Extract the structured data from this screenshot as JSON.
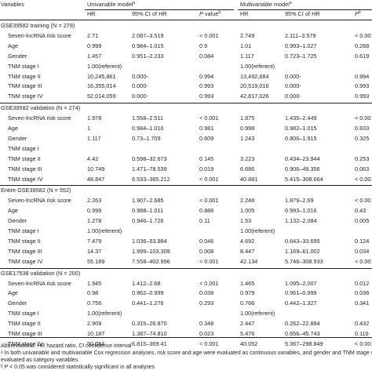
{
  "header": {
    "variables": "Variables",
    "univariable": "Univariable model",
    "univariable_sup": "a",
    "multivariable": "Multivariable model",
    "multivariable_sup": "a",
    "hr": "HR",
    "ci": "95% CI of HR",
    "p": "P",
    "p_rest": " value",
    "p_sup": "b"
  },
  "sections": [
    {
      "title": "GSE39582 training (N = 278)",
      "rows": [
        {
          "name": "Seven-lncRNA risk score",
          "hr1": "2.71",
          "ci1": "2.087–3.519",
          "p1": "< 0.001",
          "hr2": "2.749",
          "ci2": "2.111–3.579",
          "p2": "< 0.001"
        },
        {
          "name": "Age",
          "hr1": "0.999",
          "ci1": "0.984–1.015",
          "p1": "0.9",
          "hr2": "1.01",
          "ci2": "0.993–1.027",
          "p2": "0.268"
        },
        {
          "name": "Gender",
          "hr1": "1.457",
          "ci1": "0.951–2.233",
          "p1": "0.084",
          "hr2": "1.117",
          "ci2": "0.723–1.725",
          "p2": "0.619"
        },
        {
          "name": "TNM stage I",
          "hr1": "1.00(referent)",
          "ci1": "",
          "p1": "",
          "hr2": "1.00(referent)",
          "ci2": "",
          "p2": ""
        },
        {
          "name": "TNM stage II",
          "hr1": "10,245,861",
          "ci1": "0.000-",
          "p1": "0.994",
          "hr2": "13,492,684",
          "ci2": "0.000-",
          "p2": "0.994"
        },
        {
          "name": "TNM stage III",
          "hr1": "16,355,014",
          "ci1": "0.000-",
          "p1": "0.993",
          "hr2": "20,519,016",
          "ci2": "0.000-",
          "p2": "0.993"
        },
        {
          "name": "TNM stage IV",
          "hr1": "52,014,059",
          "ci1": "0.000-",
          "p1": "0.993",
          "hr2": "42,817,026",
          "ci2": "0.000-",
          "p2": "0.993"
        }
      ]
    },
    {
      "title": "GSE39582 validation (N = 274)",
      "rows": [
        {
          "name": "Seven-lncRNA risk score",
          "hr1": "1.978",
          "ci1": "1.558–2.511",
          "p1": "< 0.001",
          "hr2": "1.875",
          "ci2": "1.435–2.449",
          "p2": "< 0.001"
        },
        {
          "name": "Age",
          "hr1": "1",
          "ci1": "0.984–1.016",
          "p1": "0.981",
          "hr2": "0.998",
          "ci2": "0.982–1.015",
          "p2": "0.833"
        },
        {
          "name": "Gender",
          "hr1": "1.117",
          "ci1": "0.73–1.709",
          "p1": "0.609",
          "hr2": "1.243",
          "ci2": "0.806–1.915",
          "p2": "0.325"
        },
        {
          "name": "TNM stage I",
          "hr1": "",
          "ci1": "",
          "p1": "",
          "hr2": "",
          "ci2": "",
          "p2": ""
        },
        {
          "name": "TNM stage II",
          "hr1": "4.42",
          "ci1": "0.598–32.673",
          "p1": "0.145",
          "hr2": "3.223",
          "ci2": "0.434–23.944",
          "p2": "0.253"
        },
        {
          "name": "TNM stage III",
          "hr1": "10.749",
          "ci1": "1.471–78.539",
          "p1": "0.019",
          "hr2": "6.686",
          "ci2": "0.906–49.356",
          "p2": "0.063"
        },
        {
          "name": "TNM stage IV",
          "hr1": "48.847",
          "ci1": "6.533–365.212",
          "p1": "< 0.001",
          "hr2": "40.881",
          "ci2": "5.415–308.664",
          "p2": "< 0.001"
        }
      ]
    },
    {
      "title": "Entire GSE39582 (N = 552)",
      "rows": [
        {
          "name": "Seven-lncRNA risk score",
          "hr1": "2.263",
          "ci1": "1.907–2.685",
          "p1": "< 0.001",
          "hr2": "2.248",
          "ci2": "1.879–2.69",
          "p2": "< 0.001"
        },
        {
          "name": "Age",
          "hr1": "0.999",
          "ci1": "0.988–1.011",
          "p1": "0.886",
          "hr2": "1.005",
          "ci2": "0.993–1.016",
          "p2": "0.43"
        },
        {
          "name": "Gender",
          "hr1": "1.278",
          "ci1": "0.946–1.726",
          "p1": "0.11",
          "hr2": "1.53",
          "ci2": "1.132–2.084",
          "p2": "0.005"
        },
        {
          "name": "TNM stage I",
          "hr1": "1.00(referent)",
          "ci1": "",
          "p1": "",
          "hr2": "1.00(referent)",
          "ci2": "",
          "p2": ""
        },
        {
          "name": "TNM stage II",
          "hr1": "7.479",
          "ci1": "1.036–53.984",
          "p1": "0.046",
          "hr2": "4.692",
          "ci2": "0.643–33.695",
          "p2": "0.124"
        },
        {
          "name": "TNM stage III",
          "hr1": "14.37",
          "ci1": "1.999–103.309",
          "p1": "0.008",
          "hr2": "8.447",
          "ci2": "1.169–61.002",
          "p2": "0.034"
        },
        {
          "name": "TNM stage IV",
          "hr1": "55.189",
          "ci1": "7.558–402.996",
          "p1": "< 0.001",
          "hr2": "42.134",
          "ci2": "5.746–308.933",
          "p2": "< 0.001"
        }
      ]
    },
    {
      "title": "GSE17538 validation (N = 200)",
      "rows": [
        {
          "name": "Seven-lncRNA risk score",
          "hr1": "1.945",
          "ci1": "1.412–2.68",
          "p1": "< 0.001",
          "hr2": "1.465",
          "ci2": "1.095–2.007",
          "p2": "0.012"
        },
        {
          "name": "Age",
          "hr1": "0.98",
          "ci1": "0.962–0.999",
          "p1": "0.038",
          "hr2": "0.979",
          "ci2": "0.961–0.999",
          "p2": "0.036"
        },
        {
          "name": "Gender",
          "hr1": "0.756",
          "ci1": "0.441–1.276",
          "p1": "0.293",
          "hr2": "0.766",
          "ci2": "0.442–1.327",
          "p2": "0.341"
        },
        {
          "name": "TNM stage I",
          "hr1": "1.00(referent)",
          "ci1": "",
          "p1": "",
          "hr2": "1.00(referent)",
          "ci2": "",
          "p2": ""
        },
        {
          "name": "TNM stage II",
          "hr1": "2.909",
          "ci1": "0.315–26.870",
          "p1": "0.348",
          "hr2": "2.447",
          "ci2": "0.262–22.884",
          "p2": "0.432"
        },
        {
          "name": "TNM stage III",
          "hr1": "10.187",
          "ci1": "1.387–74.810",
          "p1": "0.023",
          "hr2": "5.476",
          "ci2": "0.656–45.743",
          "p2": "0.116"
        },
        {
          "name": "TNM stage IV",
          "hr1": "50.054",
          "ci1": "6.815–369.41",
          "p1": "< 0.001",
          "hr2": "40.052",
          "ci2": "5.367–298.849",
          "p2": "< 0.001"
        }
      ]
    }
  ],
  "footnotes": [
    "Abbreviations: HR hazard ratio, CI confidence interval",
    "ᵃ In both univariable and multivariable Cox regression analyses, risk score and age were evaluated as continuous variables, and gender and TNM stage were",
    "evaluated as category variables",
    "ᵇ P < 0.05 was considered statistically significant in all analyses"
  ]
}
